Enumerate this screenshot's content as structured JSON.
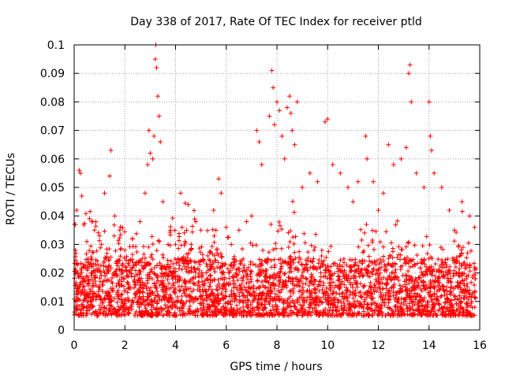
{
  "chart_data": {
    "type": "scatter",
    "title": "Day 338 of 2017, Rate Of TEC Index for receiver ptld",
    "xlabel": "GPS time / hours",
    "ylabel": "ROTI / TECUs",
    "xlim": [
      0,
      16
    ],
    "ylim": [
      0,
      0.1
    ],
    "xticks": [
      0,
      2,
      4,
      6,
      8,
      10,
      12,
      14,
      16
    ],
    "yticks": [
      0,
      0.01,
      0.02,
      0.03,
      0.04,
      0.05,
      0.06,
      0.07,
      0.08,
      0.09,
      0.1
    ],
    "xtick_labels": [
      "0",
      "2",
      "4",
      "6",
      "8",
      "10",
      "12",
      "14",
      "16"
    ],
    "ytick_labels": [
      "0",
      "0.01",
      "0.02",
      "0.03",
      "0.04",
      "0.05",
      "0.06",
      "0.07",
      "0.08",
      "0.09",
      "0.1"
    ],
    "grid": true,
    "marker": "+",
    "color": "#ff0000",
    "series": [
      {
        "name": "ROTI",
        "points": [
          [
            0.05,
            0.037
          ],
          [
            0.1,
            0.042
          ],
          [
            0.2,
            0.056
          ],
          [
            0.25,
            0.055
          ],
          [
            0.3,
            0.047
          ],
          [
            0.5,
            0.031
          ],
          [
            0.8,
            0.035
          ],
          [
            1.0,
            0.033
          ],
          [
            1.2,
            0.048
          ],
          [
            1.4,
            0.054
          ],
          [
            1.45,
            0.063
          ],
          [
            1.6,
            0.04
          ],
          [
            1.8,
            0.035
          ],
          [
            2.0,
            0.028
          ],
          [
            2.3,
            0.032
          ],
          [
            2.6,
            0.038
          ],
          [
            2.8,
            0.048
          ],
          [
            2.9,
            0.058
          ],
          [
            2.95,
            0.07
          ],
          [
            3.0,
            0.062
          ],
          [
            3.1,
            0.06
          ],
          [
            3.15,
            0.068
          ],
          [
            3.2,
            0.095
          ],
          [
            3.22,
            0.1
          ],
          [
            3.25,
            0.092
          ],
          [
            3.3,
            0.082
          ],
          [
            3.35,
            0.075
          ],
          [
            3.4,
            0.066
          ],
          [
            3.5,
            0.045
          ],
          [
            3.8,
            0.035
          ],
          [
            4.0,
            0.03
          ],
          [
            4.2,
            0.048
          ],
          [
            4.5,
            0.044
          ],
          [
            4.8,
            0.038
          ],
          [
            5.0,
            0.035
          ],
          [
            5.5,
            0.042
          ],
          [
            5.7,
            0.053
          ],
          [
            5.8,
            0.048
          ],
          [
            6.0,
            0.036
          ],
          [
            6.2,
            0.03
          ],
          [
            6.5,
            0.035
          ],
          [
            6.8,
            0.038
          ],
          [
            7.0,
            0.04
          ],
          [
            7.2,
            0.07
          ],
          [
            7.3,
            0.066
          ],
          [
            7.4,
            0.058
          ],
          [
            7.7,
            0.075
          ],
          [
            7.8,
            0.091
          ],
          [
            7.85,
            0.085
          ],
          [
            7.9,
            0.072
          ],
          [
            8.0,
            0.08
          ],
          [
            8.1,
            0.077
          ],
          [
            8.2,
            0.068
          ],
          [
            8.3,
            0.06
          ],
          [
            8.4,
            0.078
          ],
          [
            8.5,
            0.082
          ],
          [
            8.55,
            0.076
          ],
          [
            8.6,
            0.07
          ],
          [
            8.7,
            0.065
          ],
          [
            8.8,
            0.08
          ],
          [
            9.0,
            0.05
          ],
          [
            9.3,
            0.055
          ],
          [
            9.6,
            0.052
          ],
          [
            9.9,
            0.073
          ],
          [
            10.0,
            0.074
          ],
          [
            10.2,
            0.058
          ],
          [
            10.5,
            0.055
          ],
          [
            10.8,
            0.05
          ],
          [
            11.0,
            0.045
          ],
          [
            11.2,
            0.052
          ],
          [
            11.5,
            0.068
          ],
          [
            11.55,
            0.06
          ],
          [
            11.8,
            0.052
          ],
          [
            12.0,
            0.042
          ],
          [
            12.2,
            0.048
          ],
          [
            12.4,
            0.065
          ],
          [
            12.6,
            0.058
          ],
          [
            12.9,
            0.06
          ],
          [
            13.1,
            0.064
          ],
          [
            13.2,
            0.09
          ],
          [
            13.25,
            0.093
          ],
          [
            13.3,
            0.08
          ],
          [
            13.5,
            0.055
          ],
          [
            13.8,
            0.05
          ],
          [
            14.0,
            0.08
          ],
          [
            14.05,
            0.068
          ],
          [
            14.1,
            0.063
          ],
          [
            14.2,
            0.055
          ],
          [
            14.5,
            0.05
          ],
          [
            14.8,
            0.042
          ],
          [
            15.0,
            0.035
          ],
          [
            15.3,
            0.045
          ],
          [
            15.6,
            0.04
          ],
          [
            15.8,
            0.036
          ]
        ]
      }
    ]
  }
}
